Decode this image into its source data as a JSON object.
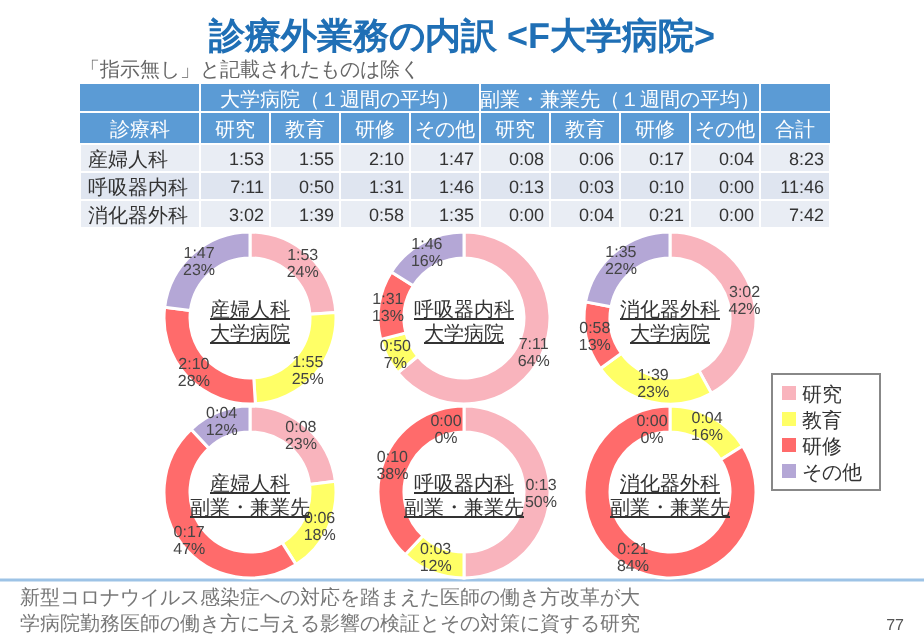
{
  "chart_data": [
    {
      "type": "other",
      "title": "診療外業務の内訳 <F大学病院>",
      "subtitle": "「指示無し」と記載されたものは除く",
      "categories": [
        "診療科",
        "研究",
        "教育",
        "研修",
        "その他",
        "研究",
        "教育",
        "研修",
        "その他",
        "合計"
      ],
      "y_categories": [
        "産婦人科",
        "呼吸器内科",
        "消化器外科"
      ],
      "cell_labels": [
        [
          "1:53",
          "1:55",
          "2:10",
          "1:47",
          "0:08",
          "0:06",
          "0:17",
          "0:04",
          "8:23"
        ],
        [
          "7:11",
          "0:50",
          "1:31",
          "1:46",
          "0:13",
          "0:03",
          "0:10",
          "0:00",
          "11:46"
        ],
        [
          "3:02",
          "1:39",
          "0:58",
          "1:35",
          "0:00",
          "0:04",
          "0:21",
          "0:00",
          "7:42"
        ]
      ],
      "annotations": [
        "大学病院（１週間の平均）",
        "副業・兼業先（１週間の平均）",
        "新型コロナウイルス感染症への対応を踏まえた医師の働き方改革が大学病院勤務医師の働き方に与える影響の検証とその対策に資する研究",
        "77"
      ]
    },
    {
      "type": "donut",
      "title": "産婦人科",
      "subtitle": "大学病院",
      "values": [
        24,
        25,
        28,
        23
      ],
      "colors": [
        "#f9b4bd",
        "#ffff66",
        "#ff6b6b",
        "#b4a7d6"
      ],
      "value_labels": [
        "1:53 24%",
        "1:55 25%",
        "2:10 28%",
        "1:47 23%"
      ]
    },
    {
      "type": "donut",
      "title": "呼吸器内科",
      "subtitle": "大学病院",
      "values": [
        64,
        7,
        13,
        16
      ],
      "colors": [
        "#f9b4bd",
        "#ffff66",
        "#ff6b6b",
        "#b4a7d6"
      ],
      "value_labels": [
        "7:11 64%",
        "0:50 7%",
        "1:31 13%",
        "1:46 16%"
      ]
    },
    {
      "type": "donut",
      "title": "消化器外科",
      "subtitle": "大学病院",
      "categories": [
        "研究",
        "教育",
        "研修",
        "その他"
      ],
      "values": [
        42,
        23,
        13,
        22
      ],
      "colors": [
        "#f9b4bd",
        "#ffff66",
        "#ff6b6b",
        "#b4a7d6"
      ],
      "value_labels": [
        "3:02 42%",
        "1:39 23%",
        "0:58 13%",
        "1:35 22%"
      ],
      "legend": "right"
    },
    {
      "type": "donut",
      "title": "産婦人科",
      "subtitle": "副業・兼業先",
      "values": [
        23,
        18,
        47,
        12
      ],
      "colors": [
        "#f9b4bd",
        "#ffff66",
        "#ff6b6b",
        "#b4a7d6"
      ],
      "value_labels": [
        "0:08 23%",
        "0:06 18%",
        "0:17 47%",
        "0:04 12%"
      ]
    },
    {
      "type": "donut",
      "title": "呼吸器内科",
      "subtitle": "副業・兼業先",
      "values": [
        50,
        12,
        38,
        0
      ],
      "colors": [
        "#f9b4bd",
        "#ffff66",
        "#ff6b6b",
        "#b4a7d6"
      ],
      "value_labels": [
        "0:13 50%",
        "0:03 12%",
        "0:10 38%",
        "0:00 0%"
      ]
    },
    {
      "type": "donut",
      "title": "消化器外科",
      "subtitle": "副業・兼業先",
      "values": [
        0,
        16,
        84,
        0
      ],
      "colors": [
        "#f9b4bd",
        "#ffff66",
        "#ff6b6b",
        "#b4a7d6"
      ],
      "value_labels": [
        "0:00 0%",
        "0:04 16%",
        "0:21 84%",
        null
      ]
    }
  ]
}
